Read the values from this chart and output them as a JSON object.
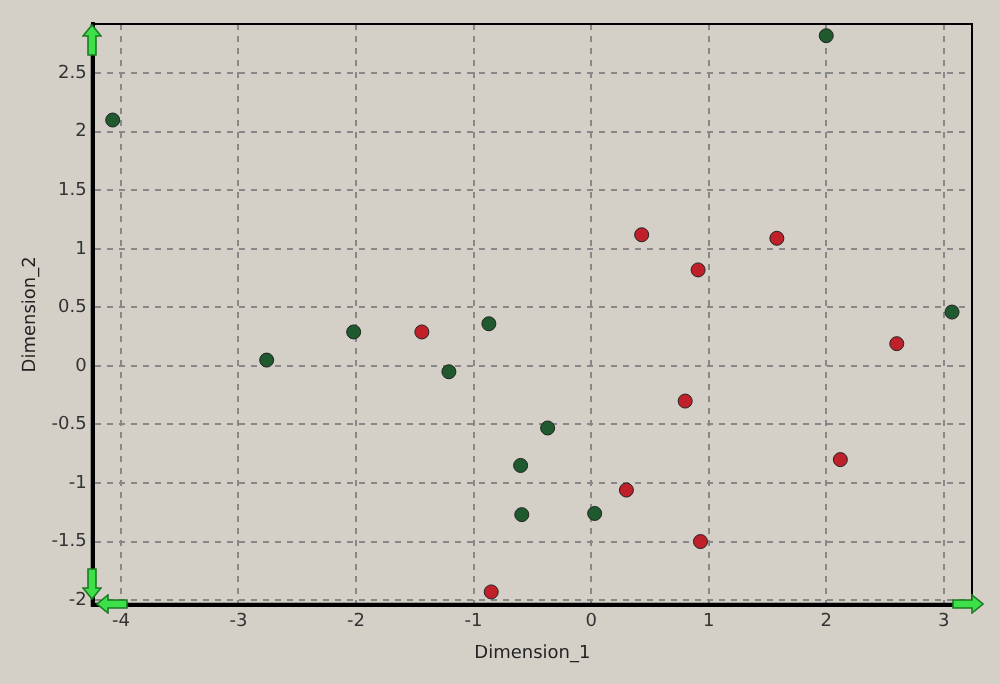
{
  "chart_data": {
    "type": "scatter",
    "xlabel": "Dimension_1",
    "ylabel": "Dimension_2",
    "xlim": [
      -4.24,
      3.24
    ],
    "ylim": [
      -2.04,
      2.92
    ],
    "xticks": [
      -4,
      -3,
      -2,
      -1,
      0,
      1,
      2,
      3
    ],
    "yticks": [
      -2,
      -1.5,
      -1,
      -0.5,
      0,
      0.5,
      1,
      1.5,
      2,
      2.5
    ],
    "grid": true,
    "marker": "circle",
    "line_style": "dashed",
    "series": [
      {
        "color": "#1f5a2e",
        "x": [
          -4.07,
          -2.76,
          -2.02,
          -1.21,
          -0.87,
          2.0,
          3.07,
          -0.37,
          -0.6,
          -0.59,
          0.03
        ],
        "values": [
          2.1,
          0.05,
          0.29,
          -0.05,
          0.36,
          2.82,
          0.46,
          -0.53,
          -0.85,
          -1.27,
          -1.26
        ]
      },
      {
        "color": "#c0202a",
        "x": [
          -1.44,
          -0.85,
          0.43,
          1.58,
          0.91,
          2.6,
          0.8,
          2.12,
          0.3,
          0.93
        ],
        "values": [
          0.29,
          -1.93,
          1.12,
          1.09,
          0.82,
          0.19,
          -0.3,
          -0.8,
          -1.06,
          -1.5
        ]
      }
    ]
  }
}
